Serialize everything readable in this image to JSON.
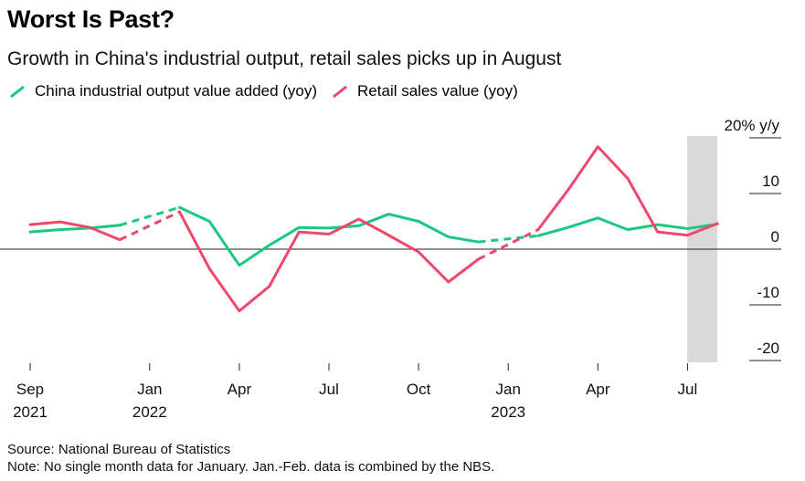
{
  "title": "Worst Is Past?",
  "subtitle": "Growth in China's industrial output, retail sales picks up in August",
  "legend": [
    {
      "label": "China industrial output value added (yoy)",
      "color": "#19c97f"
    },
    {
      "label": "Retail sales value (yoy)",
      "color": "#f0486a"
    }
  ],
  "chart_data": {
    "type": "line",
    "ylabel": "20% y/y",
    "ylim": [
      -20,
      20
    ],
    "yticks": [
      20,
      10,
      0,
      -10,
      -20
    ],
    "ytick_labels": [
      "20% y/y",
      "10",
      "0",
      "-10",
      "-20"
    ],
    "x": [
      "2021-09",
      "2021-10",
      "2021-11",
      "2021-12",
      "2022-01",
      "2022-02",
      "2022-03",
      "2022-04",
      "2022-05",
      "2022-06",
      "2022-07",
      "2022-08",
      "2022-09",
      "2022-10",
      "2022-11",
      "2022-12",
      "2023-01",
      "2023-02",
      "2023-03",
      "2023-04",
      "2023-05",
      "2023-06",
      "2023-07",
      "2023-08"
    ],
    "xtick_labels": [
      {
        "x": "2021-09",
        "label": "Sep",
        "year": "2021"
      },
      {
        "x": "2022-01",
        "label": "Jan",
        "year": "2022"
      },
      {
        "x": "2022-04",
        "label": "Apr",
        "year": ""
      },
      {
        "x": "2022-07",
        "label": "Jul",
        "year": ""
      },
      {
        "x": "2022-10",
        "label": "Oct",
        "year": ""
      },
      {
        "x": "2023-01",
        "label": "Jan",
        "year": "2023"
      },
      {
        "x": "2023-04",
        "label": "Apr",
        "year": ""
      },
      {
        "x": "2023-07",
        "label": "Jul",
        "year": ""
      }
    ],
    "series": [
      {
        "name": "China industrial output value added (yoy)",
        "color": "#19c97f",
        "values": [
          3.1,
          3.5,
          3.8,
          4.3,
          null,
          7.5,
          5.0,
          -2.9,
          0.7,
          3.9,
          3.8,
          4.2,
          6.3,
          5.0,
          2.2,
          1.3,
          null,
          2.4,
          3.9,
          5.6,
          3.5,
          4.4,
          3.7,
          4.5
        ],
        "interpolated_gaps": [
          [
            3,
            5
          ],
          [
            15,
            17
          ]
        ]
      },
      {
        "name": "Retail sales value (yoy)",
        "color": "#f0486a",
        "values": [
          4.4,
          4.9,
          3.9,
          1.7,
          null,
          6.7,
          -3.5,
          -11.1,
          -6.7,
          3.1,
          2.7,
          5.4,
          2.5,
          -0.5,
          -5.9,
          -1.8,
          null,
          3.5,
          10.6,
          18.4,
          12.7,
          3.1,
          2.5,
          4.6
        ],
        "interpolated_gaps": [
          [
            3,
            5
          ],
          [
            15,
            17
          ]
        ]
      }
    ],
    "highlight": {
      "x": "2023-08",
      "color": "#d9d9d9"
    },
    "grid": false,
    "legend_position": "top-left"
  },
  "footnotes": {
    "source": "Source: National Bureau of Statistics",
    "note": "Note: No single month data for January. Jan.-Feb. data is combined by the NBS."
  }
}
